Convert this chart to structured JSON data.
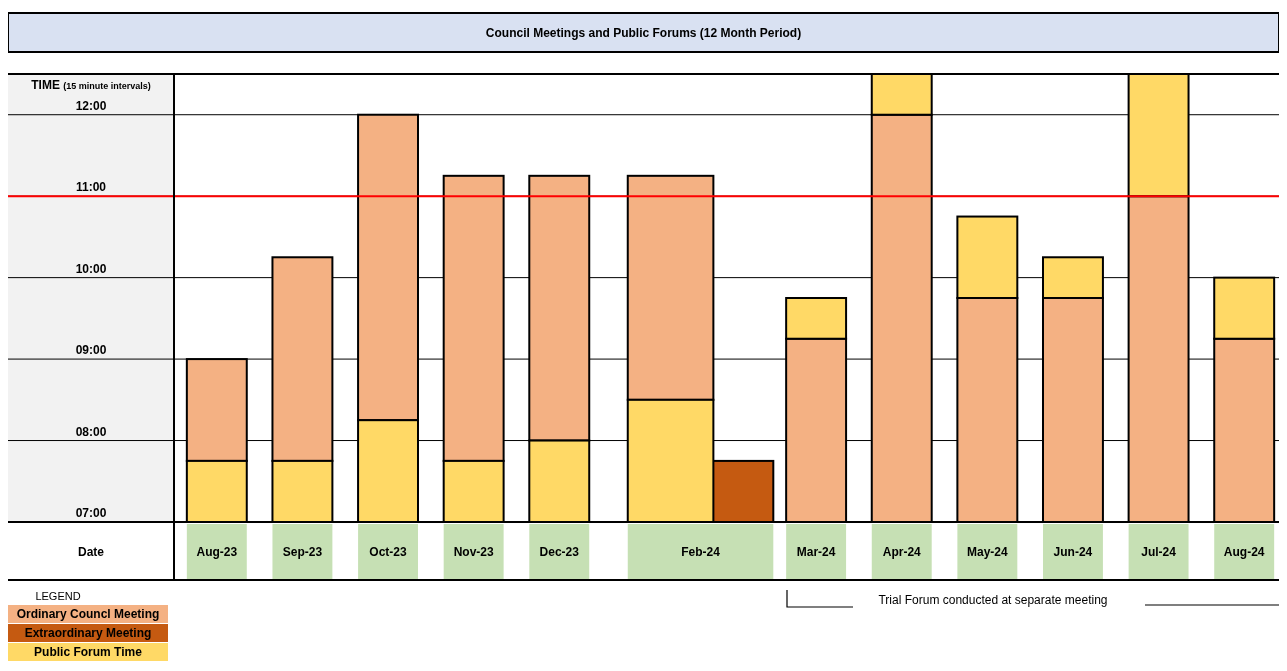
{
  "chart_data": {
    "type": "bar",
    "title": "Council Meetings and Public Forums  (12 Month Period)",
    "ylabel": "TIME $_{(15 minute intervals)}$",
    "xlabel": "Date",
    "legend_title": "LEGEND",
    "legend": "bottom left",
    "grid": "y",
    "categories": [
      "Aug-23",
      "Sep-23",
      "Oct-23",
      "Nov-23",
      "Dec-23",
      "Feb-24",
      null,
      "Mar-24",
      "Apr-24",
      "May-24",
      "Jun-24",
      "Jul-24",
      "Aug-24"
    ],
    "ylim": [
      7,
      12.5
    ],
    "yticks": [
      {
        "value": 7,
        "label": "07:00"
      },
      {
        "value": 8,
        "label": "08:00"
      },
      {
        "value": 9,
        "label": "09:00"
      },
      {
        "value": 10,
        "label": "10:00"
      },
      {
        "value": 11,
        "label": "11:00"
      },
      {
        "value": 12,
        "label": "12:00"
      }
    ],
    "series": [
      {
        "name": "Ordinary Councl Meeting",
        "color": "#f4b183",
        "base": [
          7.75,
          7.75,
          8.25,
          7.75,
          8,
          8.5,
          null,
          7,
          7,
          7,
          7,
          7,
          7
        ],
        "values": [
          1.25,
          2.5,
          3.75,
          3.5,
          3.25,
          2.75,
          null,
          2.25,
          5,
          2.75,
          2.75,
          4,
          2.25
        ]
      },
      {
        "name": "Extraordinary Meeting",
        "color": "#c55a11",
        "base": [
          null,
          null,
          null,
          null,
          null,
          null,
          7,
          null,
          null,
          null,
          null,
          null,
          null
        ],
        "values": [
          null,
          null,
          null,
          null,
          null,
          null,
          0.75,
          null,
          null,
          null,
          null,
          null,
          null
        ]
      },
      {
        "name": "Public Forum Time",
        "color": "#ffd966",
        "base": [
          7,
          7,
          7,
          7,
          7,
          7,
          null,
          9.25,
          12,
          9.75,
          9.75,
          11,
          9.25
        ],
        "values": [
          0.75,
          0.75,
          1.25,
          0.75,
          1,
          1.5,
          null,
          0.5,
          0.5,
          1,
          0.5,
          1.5,
          0.75
        ]
      }
    ],
    "ref_lines": [
      {
        "axis": "y",
        "value": 11,
        "color": "#ff0000"
      }
    ],
    "annotations": [
      "Trial Forum conducted at separate meeting"
    ]
  }
}
